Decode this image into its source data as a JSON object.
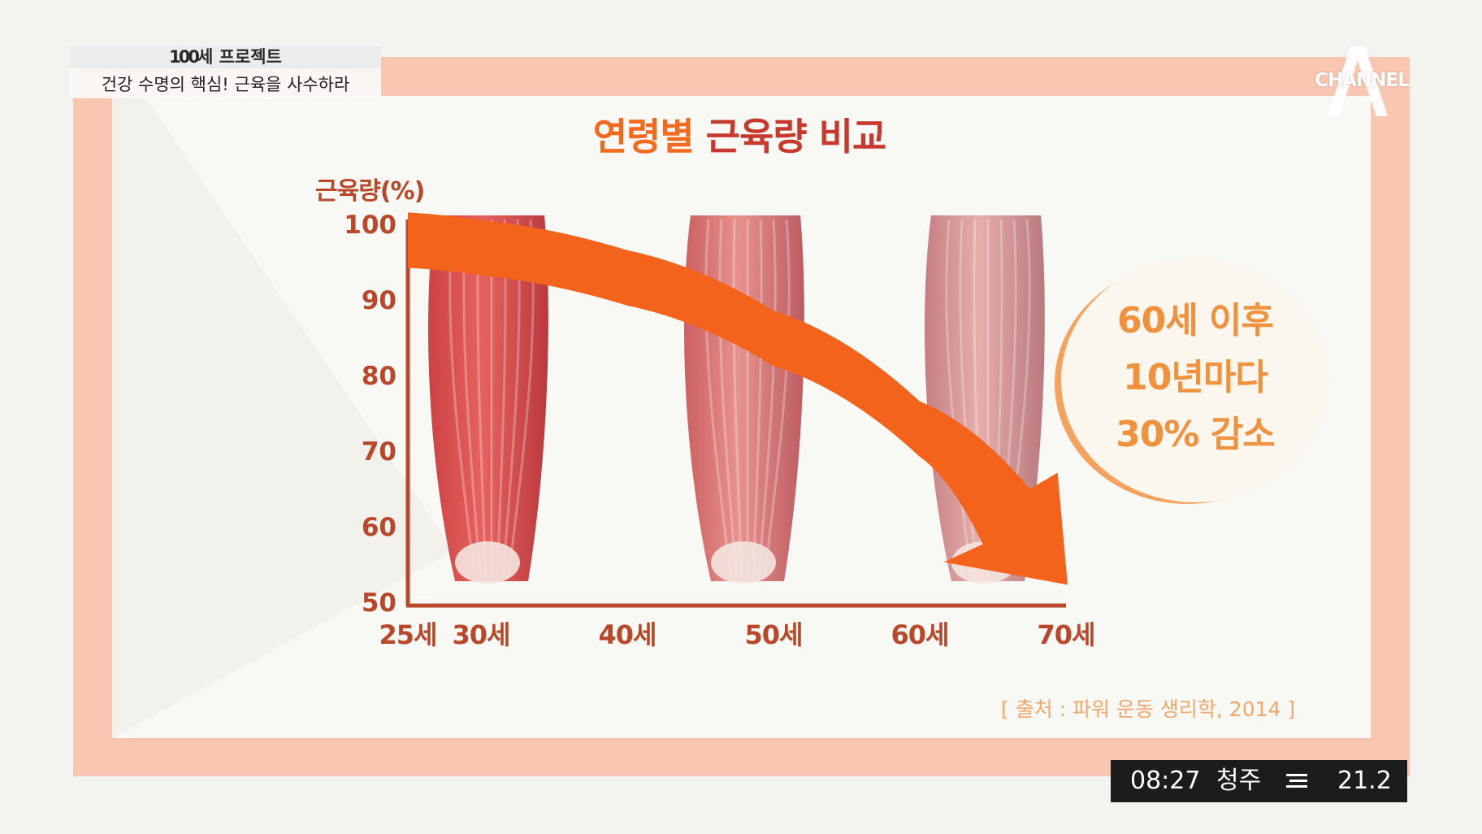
{
  "broadcast": {
    "program_name": "100세 프로젝트",
    "program_name_number": "100",
    "program_name_suffix": "세 프로젝트",
    "episode_title": "건강 수명의 핵심! 근육을 사수하라",
    "channel_logo": "CHANNEL",
    "ticker": {
      "time": "08:27",
      "city": "청주",
      "weather_icon": "haze-icon",
      "temperature": "21.2"
    }
  },
  "chart_data": {
    "type": "line",
    "title": "연령별 근육량 비교",
    "title_part1": "연령별",
    "title_part2": "근육량 비교",
    "ylabel": "근육량(%)",
    "xlabel": "",
    "y_ticks": [
      "100",
      "90",
      "80",
      "70",
      "60",
      "50"
    ],
    "x_ticks": [
      "25세",
      "30세",
      "40세",
      "50세",
      "60세",
      "70세"
    ],
    "ylim": [
      50,
      100
    ],
    "x": [
      25,
      30,
      40,
      50,
      60,
      70
    ],
    "series": [
      {
        "values": [
          100,
          99,
          95,
          87,
          75,
          52
        ]
      }
    ],
    "colors": {
      "arrow": "#f4631b",
      "axis": "#b9472a",
      "title": "#f26a1e",
      "title_accent": "#c7382d"
    },
    "callout": [
      "60세 이후",
      "10년마다",
      "30% 감소"
    ],
    "source": "[ 출처 : 파워 운동 생리학, 2014 ]"
  }
}
